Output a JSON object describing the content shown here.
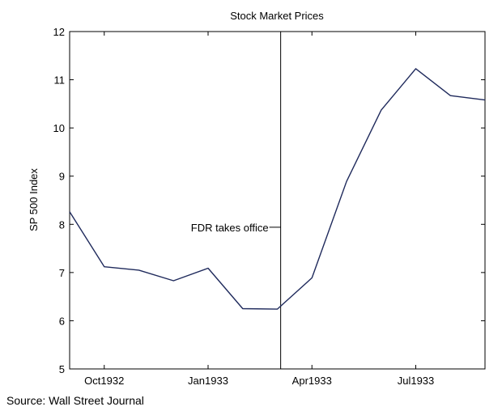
{
  "chart_data": {
    "type": "line",
    "title": "Stock Market Prices",
    "xlabel": "",
    "ylabel": "SP 500 Index",
    "source": "Source: Wall Street Journal",
    "ylim": [
      5,
      12
    ],
    "yticks": [
      5,
      6,
      7,
      8,
      9,
      10,
      11,
      12
    ],
    "xlim": [
      "1932-09",
      "1933-09"
    ],
    "xticks": [
      {
        "x": "1932-10",
        "label": "Oct1932"
      },
      {
        "x": "1933-01",
        "label": "Jan1933"
      },
      {
        "x": "1933-04",
        "label": "Apr1933"
      },
      {
        "x": "1933-07",
        "label": "Jul1933"
      }
    ],
    "grid": false,
    "legend": "none",
    "line_color": "#1f2a5c",
    "series": [
      {
        "x": [
          "1932-09",
          "1932-10",
          "1932-11",
          "1932-12",
          "1933-01",
          "1933-02",
          "1933-03",
          "1933-04",
          "1933-05",
          "1933-06",
          "1933-07",
          "1933-08",
          "1933-09"
        ],
        "values": [
          8.26,
          7.12,
          7.05,
          6.83,
          7.09,
          6.25,
          6.24,
          6.89,
          8.89,
          10.37,
          11.23,
          10.67,
          10.58
        ]
      }
    ],
    "annotation": {
      "label": "FDR takes office",
      "x": "1933-03-04"
    }
  }
}
